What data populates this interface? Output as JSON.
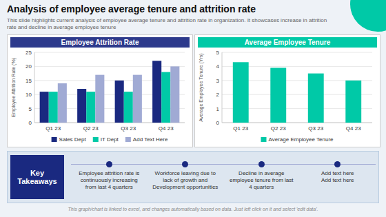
{
  "title": "Analysis of employee average tenure and attrition rate",
  "subtitle": "This slide highlights current analysis of employee average tenure and attrition rate in organization. It showcases increase in attrition rate and decline in average employee tenure",
  "annotations": [
    "Key Takeaways",
    "Employee attrition rate is\ncontinuously increasing\nfrom last 4 quarters",
    "Workforce leaving due to\nlack of growth and\nDevelopment opportunities",
    "Decline in average\nemployee tenure from last\n4 quarters",
    "Add text here\nAdd text here",
    "This graph/chart is linked to excel, and changes automatically based on data. Just left click on it and select 'edit data'."
  ],
  "chart_data": [
    {
      "type": "bar",
      "title": "Employee Attrition Rate",
      "ylabel": "Employee Attrition Rate (%)",
      "categories": [
        "Q1 23",
        "Q2 23",
        "Q3 23",
        "Q4 23"
      ],
      "series": [
        {
          "name": "Sales Dept",
          "color": "#1a2980",
          "values": [
            11,
            12,
            15,
            22
          ]
        },
        {
          "name": "IT Dept",
          "color": "#00c9a7",
          "values": [
            11,
            11,
            11,
            18
          ]
        },
        {
          "name": "Add Text Here",
          "color": "#a0aad4",
          "values": [
            14,
            17,
            17,
            20
          ]
        }
      ],
      "ylim": [
        0,
        25
      ],
      "yticks": [
        0,
        5,
        10,
        15,
        20,
        25
      ],
      "grid": true,
      "legend": "bottom"
    },
    {
      "type": "bar",
      "title": "Average Employee Tenure",
      "ylabel": "Average Employee Tenure (Yrs)",
      "categories": [
        "Q1 23",
        "Q2 23",
        "Q3 23",
        "Q4 23"
      ],
      "series": [
        {
          "name": "Average Employee Tenure",
          "color": "#00c9a7",
          "values": [
            4.3,
            3.9,
            3.5,
            3.0
          ]
        }
      ],
      "ylim": [
        0,
        5
      ],
      "yticks": [
        0,
        1,
        2,
        3,
        4,
        5
      ],
      "grid": true,
      "legend": "bottom"
    }
  ]
}
